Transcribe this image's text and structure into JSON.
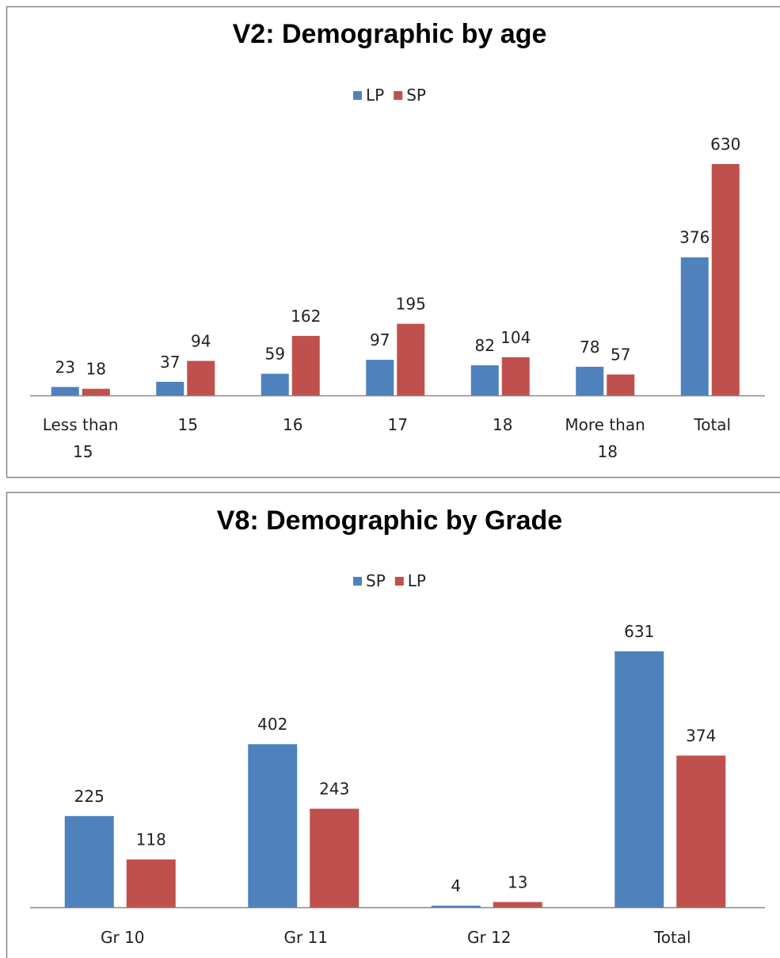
{
  "chart_data": [
    {
      "type": "bar",
      "title": "V2: Demographic by age",
      "categories": [
        "Less than 15",
        "15",
        "16",
        "17",
        "18",
        "More than 18",
        "Total"
      ],
      "series": [
        {
          "name": "LP",
          "color": "#4f81bd",
          "values": [
            23,
            37,
            59,
            97,
            82,
            78,
            376
          ]
        },
        {
          "name": "SP",
          "color": "#c0504d",
          "values": [
            18,
            94,
            162,
            195,
            104,
            57,
            630
          ]
        }
      ],
      "legend": "top"
    },
    {
      "type": "bar",
      "title": "V8: Demographic by Grade",
      "categories": [
        "Gr 10",
        "Gr 11",
        "Gr 12",
        "Total"
      ],
      "series": [
        {
          "name": "SP",
          "color": "#4f81bd",
          "values": [
            225,
            402,
            4,
            631
          ]
        },
        {
          "name": "LP",
          "color": "#c0504d",
          "values": [
            118,
            243,
            13,
            374
          ]
        }
      ],
      "legend": "top"
    }
  ]
}
